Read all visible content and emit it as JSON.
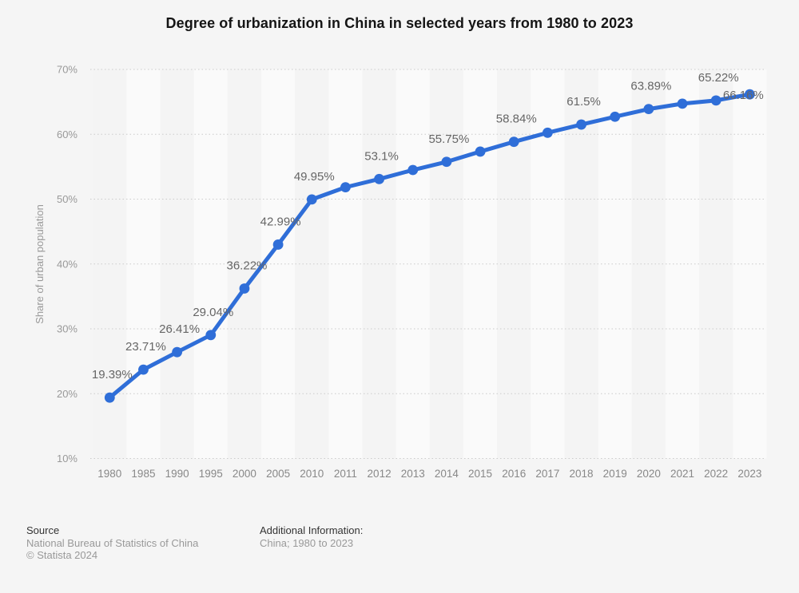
{
  "chart_data": {
    "type": "line",
    "title": "Degree of urbanization in China in selected years from 1980 to 2023",
    "ylabel": "Share of urban population",
    "xlabel": "",
    "legend": "none",
    "grid": "horizontal-dotted",
    "ylim": [
      10,
      70
    ],
    "yticks": [
      {
        "value": 70,
        "label": "70%"
      },
      {
        "value": 60,
        "label": "60%"
      },
      {
        "value": 50,
        "label": "50%"
      },
      {
        "value": 40,
        "label": "40%"
      },
      {
        "value": 30,
        "label": "30%"
      },
      {
        "value": 20,
        "label": "20%"
      },
      {
        "value": 10,
        "label": "10%"
      }
    ],
    "x": [
      "1980",
      "1985",
      "1990",
      "1995",
      "2000",
      "2005",
      "2010",
      "2011",
      "2012",
      "2013",
      "2014",
      "2015",
      "2016",
      "2017",
      "2018",
      "2019",
      "2020",
      "2021",
      "2022",
      "2023"
    ],
    "series": [
      {
        "name": "Share of urban population",
        "values": [
          19.39,
          23.71,
          26.41,
          29.04,
          36.22,
          42.99,
          49.95,
          51.83,
          53.1,
          54.49,
          55.75,
          57.33,
          58.84,
          60.24,
          61.5,
          62.71,
          63.89,
          64.72,
          65.22,
          66.16
        ]
      }
    ],
    "data_labels": [
      "19.39%",
      "23.71%",
      "26.41%",
      "29.04%",
      "36.22%",
      "42.99%",
      "49.95%",
      null,
      "53.1%",
      null,
      "55.75%",
      null,
      "58.84%",
      null,
      "61.5%",
      null,
      "63.89%",
      null,
      "65.22%",
      "66.16%"
    ]
  },
  "colors": {
    "line": "#2F6ED8",
    "point": "#2F6ED8",
    "background": "#f5f5f5",
    "band_dark": "#f4f4f4",
    "band_light": "#fafafa",
    "grid": "#cbcbcb",
    "y_tick": "#999999",
    "x_tick": "#888888",
    "data_label": "#666666",
    "axis_title": "#999999"
  },
  "footer": {
    "source_label": "Source",
    "source_name": "National Bureau of Statistics of China",
    "copyright": "© Statista 2024",
    "additional_info_label": "Additional Information:",
    "additional_info_value": "China; 1980 to 2023"
  }
}
